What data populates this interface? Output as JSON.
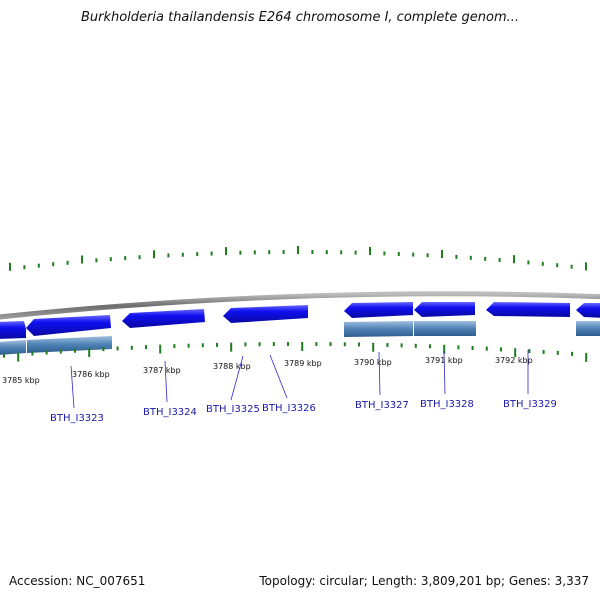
{
  "title": "Burkholderia thailandensis E264 chromosome I, complete genom...",
  "footer": {
    "accession": "Accession: NC_007651",
    "topology": "Topology: circular; Length: 3,809,201 bp; Genes: 3,337"
  },
  "colors": {
    "gene_fill": "#1010f0",
    "gene_dark": "#0808a0",
    "gene_light": "#6a6aff",
    "band": "#4f81b5",
    "band_light": "#9fc0df",
    "backbone": "#7d7d7d",
    "tick": "#1e7d1e",
    "gene_label": "#1a1aa8",
    "leader": "#2a2acc"
  },
  "ticks": [
    {
      "label": "3785 kbp"
    },
    {
      "label": "3786 kbp"
    },
    {
      "label": "3787 kbp"
    },
    {
      "label": "3788 kbp"
    },
    {
      "label": "3789 kbp"
    },
    {
      "label": "3790 kbp"
    },
    {
      "label": "3791 kbp"
    },
    {
      "label": "3792 kbp"
    }
  ],
  "genes": [
    {
      "label": "BTH_I3323"
    },
    {
      "label": "BTH_I3324"
    },
    {
      "label": "BTH_I3325"
    },
    {
      "label": "BTH_I3326"
    },
    {
      "label": "BTH_I3327"
    },
    {
      "label": "BTH_I3328"
    },
    {
      "label": "BTH_I3329"
    }
  ]
}
